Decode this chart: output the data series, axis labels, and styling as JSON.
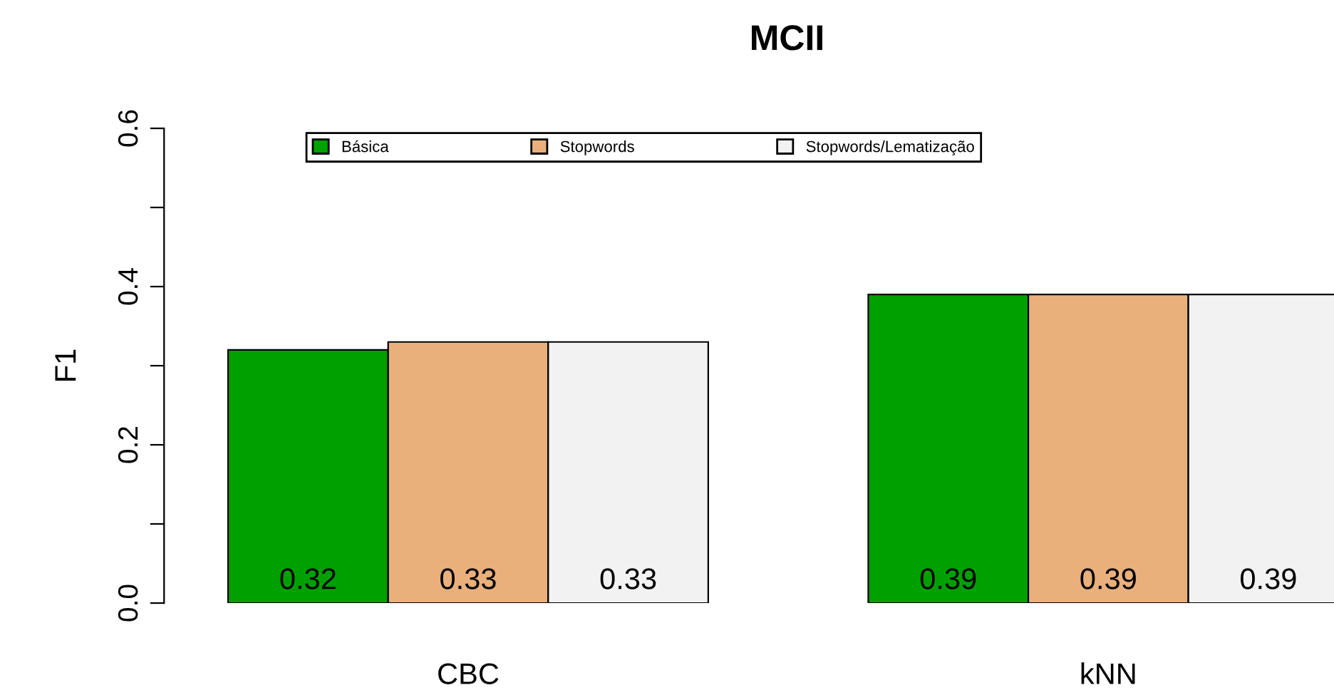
{
  "chart_data": {
    "type": "bar",
    "title": "MCII",
    "ylabel": "F1",
    "categories": [
      "CBC",
      "kNN"
    ],
    "series": [
      {
        "name": "Básica",
        "color": "#00a000",
        "values": [
          0.32,
          0.39
        ]
      },
      {
        "name": "Stopwords",
        "color": "#eab07c",
        "values": [
          0.33,
          0.39
        ]
      },
      {
        "name": "Stopwords/Lematização",
        "color": "#f2f2f2",
        "values": [
          0.33,
          0.39
        ]
      }
    ],
    "ylim": [
      0,
      0.6
    ],
    "yticks": [
      {
        "value": 0.0,
        "label": "0.0"
      },
      {
        "value": 0.1,
        "label": null
      },
      {
        "value": 0.2,
        "label": "0.2"
      },
      {
        "value": 0.3,
        "label": null
      },
      {
        "value": 0.4,
        "label": "0.4"
      },
      {
        "value": 0.5,
        "label": null
      },
      {
        "value": 0.6,
        "label": "0.6"
      }
    ],
    "data_labels": true,
    "legend": "top",
    "grid": false
  }
}
